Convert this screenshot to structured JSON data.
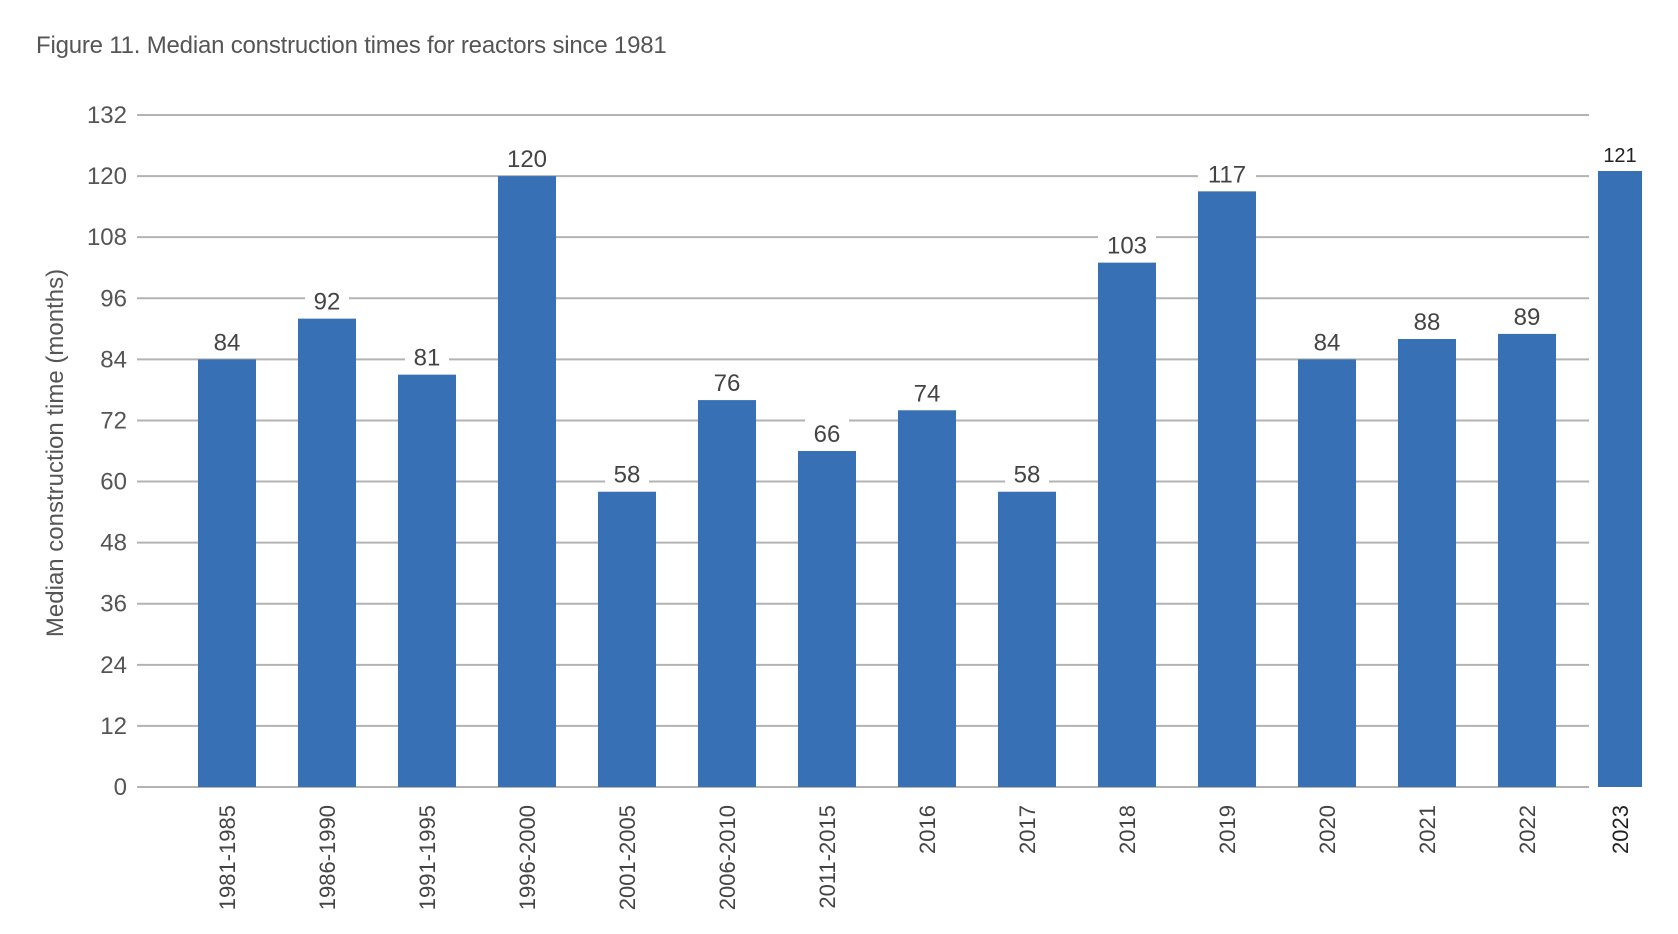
{
  "chart_data": {
    "type": "bar",
    "title": "Figure 11. Median construction times for reactors since 1981",
    "xlabel": "",
    "ylabel": "Median construction time (months)",
    "ylim": [
      0,
      132
    ],
    "yticks": [
      0,
      12,
      24,
      36,
      48,
      60,
      72,
      84,
      96,
      108,
      120,
      132
    ],
    "grid": true,
    "legend": "none",
    "categories": [
      "1981-1985",
      "1986-1990",
      "1991-1995",
      "1996-2000",
      "2001-2005",
      "2006-2010",
      "2011-2015",
      "2016",
      "2017",
      "2018",
      "2019",
      "2020",
      "2021",
      "2022",
      "2023"
    ],
    "values": [
      84,
      92,
      81,
      120,
      58,
      76,
      66,
      74,
      58,
      103,
      117,
      84,
      88,
      89,
      121
    ],
    "colors": {
      "bar": "#3770B4",
      "grid": "#B3B3B3",
      "text": "#444444"
    }
  }
}
